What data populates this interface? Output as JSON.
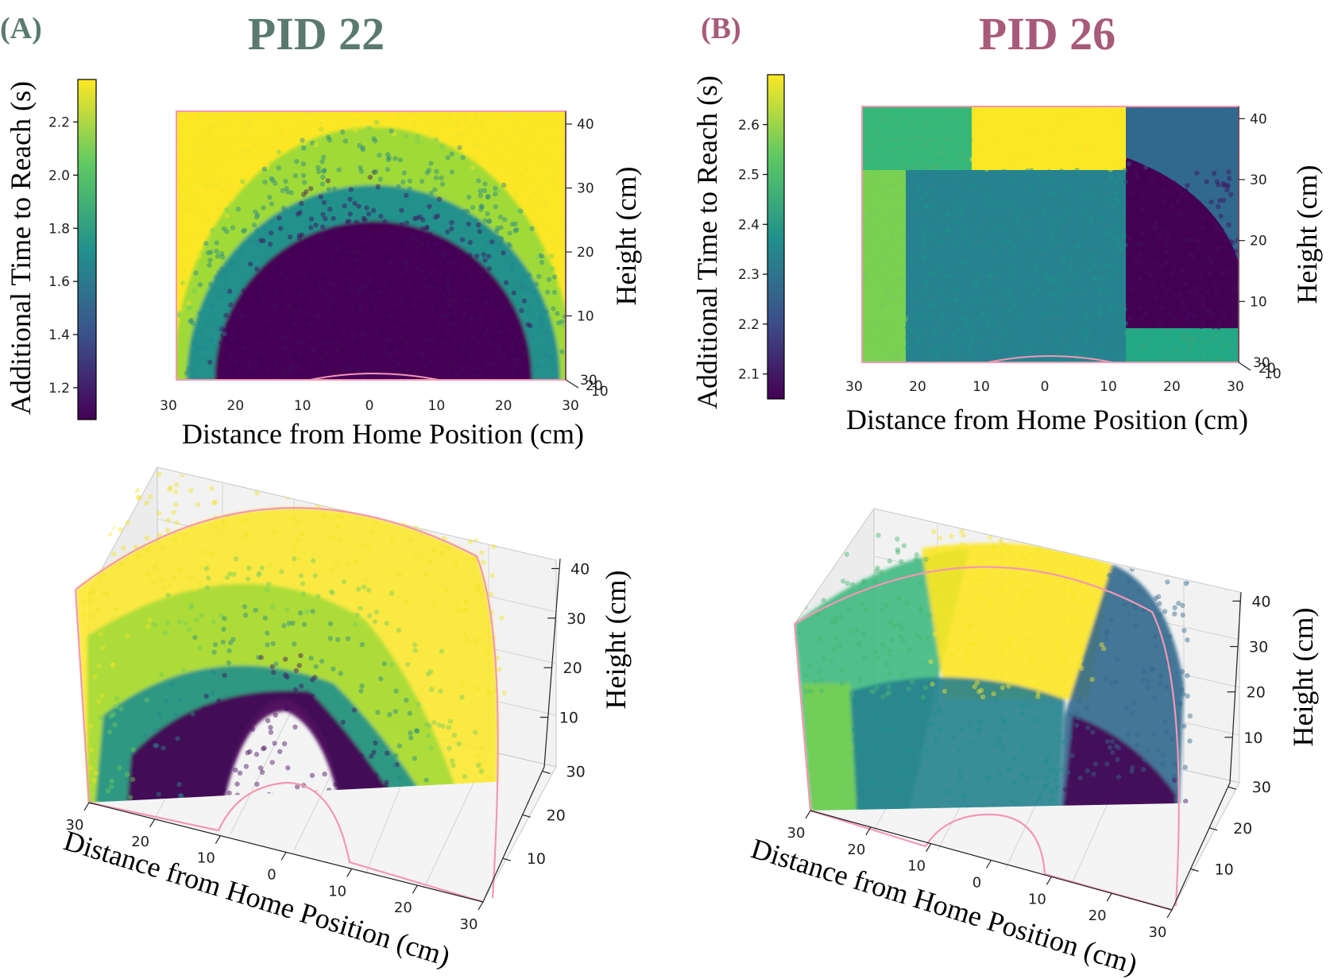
{
  "panels": [
    {
      "letter": "(A)",
      "title": "PID 22",
      "color": "#5a7a6e",
      "colorbar": {
        "label": "Additional Time to Reach (s)",
        "min": 1.08,
        "max": 2.36,
        "ticks": [
          "1.2",
          "1.4",
          "1.6",
          "1.8",
          "2.0",
          "2.2"
        ],
        "tick_values": [
          1.2,
          1.4,
          1.6,
          1.8,
          2.0,
          2.2
        ]
      }
    },
    {
      "letter": "(B)",
      "title": "PID 26",
      "color": "#a85a7a",
      "colorbar": {
        "label": "Additional Time to Reach (s)",
        "min": 2.05,
        "max": 2.7,
        "ticks": [
          "2.1",
          "2.2",
          "2.3",
          "2.4",
          "2.5",
          "2.6"
        ],
        "tick_values": [
          2.1,
          2.2,
          2.3,
          2.4,
          2.5,
          2.6
        ]
      }
    }
  ],
  "chart_data": [
    {
      "type": "scatter",
      "view": "3d-front",
      "panel": "A",
      "xlabel": "Distance from Home Position (cm)",
      "zlabel": "Height (cm)",
      "x_ticks": [
        "30",
        "20",
        "10",
        "0",
        "10",
        "20",
        "30"
      ],
      "z_ticks": [
        "40",
        "30",
        "20",
        "10"
      ],
      "y_ticks": [
        "30",
        "20",
        "10"
      ],
      "xlim": [
        -30,
        30
      ],
      "zlim": [
        0,
        42
      ],
      "colormap": "viridis",
      "levels": [
        {
          "time_s": 1.15,
          "region": "radius < 24 cm"
        },
        {
          "time_s": 1.55,
          "region": "24-27 cm"
        },
        {
          "time_s": 2.0,
          "region": "27-32 cm"
        },
        {
          "time_s": 2.3,
          "region": "radius > 32 cm"
        }
      ]
    },
    {
      "type": "scatter",
      "view": "3d-front",
      "panel": "B",
      "xlabel": "Distance from Home Position (cm)",
      "zlabel": "Height (cm)",
      "x_ticks": [
        "30",
        "20",
        "10",
        "0",
        "10",
        "20",
        "30"
      ],
      "z_ticks": [
        "40",
        "30",
        "20",
        "10"
      ],
      "y_ticks": [
        "30",
        "20",
        "10"
      ],
      "xlim": [
        -30,
        30
      ],
      "zlim": [
        0,
        42
      ],
      "colormap": "viridis",
      "regions": [
        {
          "time_s": 2.47,
          "x": [
            -30,
            -13
          ],
          "z": [
            32,
            42
          ]
        },
        {
          "time_s": 2.66,
          "x": [
            -13,
            13
          ],
          "z": [
            32,
            42
          ]
        },
        {
          "time_s": 2.27,
          "x": [
            13,
            30
          ],
          "z": [
            0,
            42
          ]
        },
        {
          "time_s": 2.54,
          "x": [
            -30,
            -23
          ],
          "z": [
            0,
            32
          ]
        },
        {
          "time_s": 2.37,
          "x": [
            -23,
            13
          ],
          "z": [
            0,
            32
          ]
        },
        {
          "time_s": 2.1,
          "x": [
            13,
            30
          ],
          "z": [
            5,
            35
          ]
        }
      ]
    },
    {
      "type": "scatter",
      "view": "3d-perspective",
      "panel": "A",
      "xlabel": "Distance from Home Position (cm)",
      "zlabel": "Height (cm)",
      "x_ticks": [
        "30",
        "20",
        "10",
        "0",
        "10",
        "20",
        "30"
      ],
      "z_ticks": [
        "40",
        "30",
        "20",
        "10"
      ],
      "y_ticks": [
        "30",
        "20",
        "10"
      ],
      "colormap": "viridis"
    },
    {
      "type": "scatter",
      "view": "3d-perspective",
      "panel": "B",
      "xlabel": "Distance from Home Position (cm)",
      "zlabel": "Height (cm)",
      "x_ticks": [
        "30",
        "20",
        "10",
        "0",
        "10",
        "20",
        "30"
      ],
      "z_ticks": [
        "40",
        "30",
        "20",
        "10"
      ],
      "y_ticks": [
        "30",
        "20",
        "10"
      ],
      "colormap": "viridis"
    }
  ]
}
